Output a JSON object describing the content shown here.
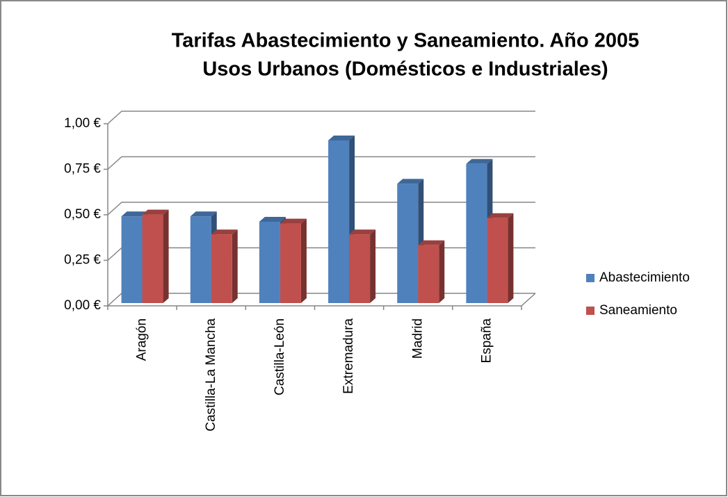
{
  "chart_data": {
    "type": "bar3d",
    "title": "Tarifas Abastecimiento y Saneamiento. Año 2005",
    "subtitle": "Usos Urbanos (Domésticos e Industriales)",
    "categories": [
      "Aragón",
      "Castilla-La Mancha",
      "Castilla-León",
      "Extremadura",
      "Madrid",
      "España"
    ],
    "series": [
      {
        "name": "Abastecimiento",
        "color": "#4f81bd",
        "values": [
          0.48,
          0.48,
          0.45,
          0.9,
          0.66,
          0.77
        ]
      },
      {
        "name": "Saneamiento",
        "color": "#c0504d",
        "values": [
          0.49,
          0.38,
          0.44,
          0.38,
          0.32,
          0.47
        ]
      }
    ],
    "ylim": [
      0,
      1
    ],
    "yticks": [
      {
        "value": 0,
        "label": "0,00 €"
      },
      {
        "value": 0.25,
        "label": "0,25 €"
      },
      {
        "value": 0.5,
        "label": "0,50 €"
      },
      {
        "value": 0.75,
        "label": "0,75 €"
      },
      {
        "value": 1,
        "label": "1,00 €"
      }
    ],
    "grid": true,
    "legend": "right"
  }
}
